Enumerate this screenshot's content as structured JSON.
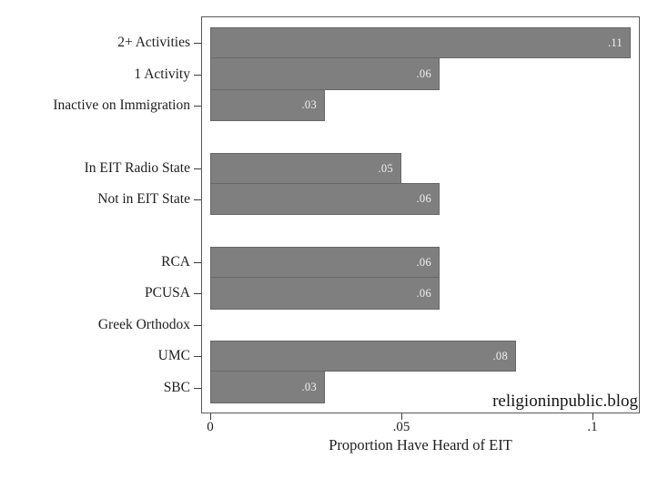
{
  "chart_data": {
    "type": "bar",
    "orientation": "horizontal",
    "title": "",
    "xlabel": "Proportion Have Heard of EIT",
    "ylabel": "",
    "xlim": [
      0,
      0.1125
    ],
    "grid": false,
    "legend": "none",
    "x_ticks": [
      {
        "value": 0,
        "label": "0"
      },
      {
        "value": 0.05,
        "label": ".05"
      },
      {
        "value": 0.1,
        "label": ".1"
      }
    ],
    "groups": [
      {
        "items": [
          {
            "label": "2+ Activities",
            "value": 0.11,
            "value_label": ".11"
          },
          {
            "label": "1 Activity",
            "value": 0.06,
            "value_label": ".06"
          },
          {
            "label": "Inactive on Immigration",
            "value": 0.03,
            "value_label": ".03"
          }
        ]
      },
      {
        "items": [
          {
            "label": "In EIT Radio State",
            "value": 0.05,
            "value_label": ".05"
          },
          {
            "label": "Not in EIT State",
            "value": 0.06,
            "value_label": ".06"
          }
        ]
      },
      {
        "items": [
          {
            "label": "RCA",
            "value": 0.06,
            "value_label": ".06"
          },
          {
            "label": "PCUSA",
            "value": 0.06,
            "value_label": ".06"
          },
          {
            "label": "Greek Orthodox",
            "value": 0,
            "value_label": ""
          },
          {
            "label": "UMC",
            "value": 0.08,
            "value_label": ".08"
          },
          {
            "label": "SBC",
            "value": 0.03,
            "value_label": ".03"
          }
        ]
      }
    ],
    "colors": {
      "bar_fill": "#7f7f7f",
      "bar_outline": "#676767",
      "bar_value_text": "#f2f2f2",
      "axis_line": "#5a5a5a",
      "tick": "#3d3d3d",
      "text": "#21201e"
    },
    "watermark": "religioninpublic.blog"
  }
}
